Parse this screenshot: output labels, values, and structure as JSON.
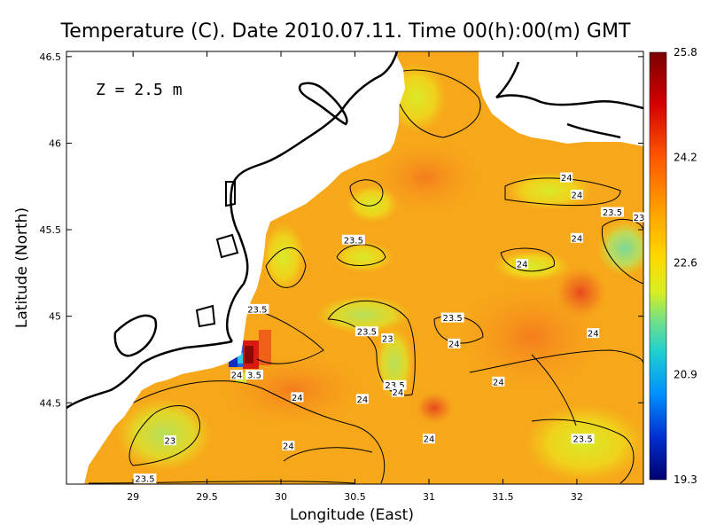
{
  "chart_data": {
    "type": "heatmap",
    "title": "Temperature (C). Date 2010.07.11. Time 00(h):00(m) GMT",
    "xlabel": "Longitude (East)",
    "ylabel": "Latitude (North)",
    "depth_label": "Z = 2.5 m",
    "xlim": [
      28.55,
      32.45
    ],
    "ylim": [
      44.03,
      46.53
    ],
    "x_ticks": [
      29,
      29.5,
      30,
      30.5,
      31,
      31.5,
      32
    ],
    "x_tick_labels": [
      "29",
      "29.5",
      "30",
      "30.5",
      "31",
      "31.5",
      "32"
    ],
    "y_ticks": [
      44.5,
      45,
      45.5,
      46,
      46.5
    ],
    "y_tick_labels": [
      "44.5",
      "45",
      "45.5",
      "46",
      "46.5"
    ],
    "colorbar": {
      "min": 19.3,
      "max": 25.8,
      "ticks": [
        25.8,
        24.2,
        22.6,
        20.9,
        19.3
      ],
      "tick_labels": [
        "25.8",
        "24.2",
        "22.6",
        "20.9",
        "19.3"
      ],
      "colormap": "rainbow (dark blue to dark red)"
    },
    "contour_labels": [
      {
        "text": "24",
        "x": 31.93,
        "y": 45.8
      },
      {
        "text": "24",
        "x": 32.0,
        "y": 45.7
      },
      {
        "text": "23.5",
        "x": 32.24,
        "y": 45.6
      },
      {
        "text": "23",
        "x": 32.42,
        "y": 45.57
      },
      {
        "text": "24",
        "x": 32.0,
        "y": 45.45
      },
      {
        "text": "24",
        "x": 31.63,
        "y": 45.3
      },
      {
        "text": "23.5",
        "x": 30.49,
        "y": 45.44
      },
      {
        "text": "23.5",
        "x": 29.84,
        "y": 45.04
      },
      {
        "text": "23.5",
        "x": 31.16,
        "y": 44.99
      },
      {
        "text": "23.5",
        "x": 30.58,
        "y": 44.91
      },
      {
        "text": "23",
        "x": 30.72,
        "y": 44.87
      },
      {
        "text": "24",
        "x": 31.17,
        "y": 44.84
      },
      {
        "text": "24",
        "x": 32.11,
        "y": 44.9
      },
      {
        "text": "24",
        "x": 31.47,
        "y": 44.62
      },
      {
        "text": "23.5",
        "x": 30.77,
        "y": 44.6
      },
      {
        "text": "24",
        "x": 30.79,
        "y": 44.56
      },
      {
        "text": "24",
        "x": 30.11,
        "y": 44.53
      },
      {
        "text": "24",
        "x": 30.55,
        "y": 44.52
      },
      {
        "text": "24",
        "x": 29.7,
        "y": 44.66
      },
      {
        "text": "3.5",
        "x": 29.82,
        "y": 44.66
      },
      {
        "text": "24",
        "x": 30.05,
        "y": 44.25
      },
      {
        "text": "24",
        "x": 31.0,
        "y": 44.29
      },
      {
        "text": "23",
        "x": 29.25,
        "y": 44.28
      },
      {
        "text": "23.5",
        "x": 32.04,
        "y": 44.29
      },
      {
        "text": "23.5",
        "x": 29.08,
        "y": 44.06
      }
    ]
  },
  "colors": {
    "land": "#ffffff",
    "coast": "#000000",
    "sea_base": "#f7a71a"
  }
}
